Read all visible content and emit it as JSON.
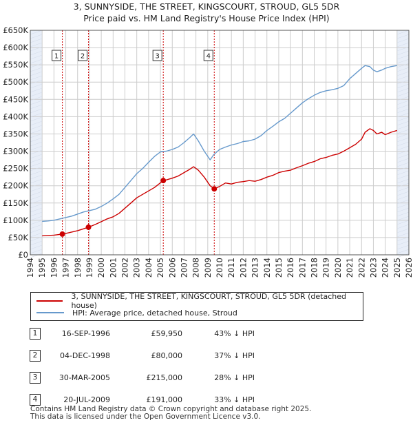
{
  "title_line1": "3, SUNNYSIDE, THE STREET, KINGSCOURT, STROUD, GL5 5DR",
  "title_line2": "Price paid vs. HM Land Registry's House Price Index (HPI)",
  "colors": {
    "price": "#cc0000",
    "hpi": "#6699cc",
    "marker_line": "#cc0000",
    "shade": "#e8eef8",
    "grid": "#cccccc"
  },
  "legend": {
    "price_label": "3, SUNNYSIDE, THE STREET, KINGSCOURT, STROUD, GL5 5DR (detached house)",
    "hpi_label": "HPI: Average price, detached house, Stroud"
  },
  "transactions": [
    {
      "num": "1",
      "date": "16-SEP-1996",
      "price": "£59,950",
      "hpi_diff": "43% ↓ HPI"
    },
    {
      "num": "2",
      "date": "04-DEC-1998",
      "price": "£80,000",
      "hpi_diff": "37% ↓ HPI"
    },
    {
      "num": "3",
      "date": "30-MAR-2005",
      "price": "£215,000",
      "hpi_diff": "28% ↓ HPI"
    },
    {
      "num": "4",
      "date": "20-JUL-2009",
      "price": "£191,000",
      "hpi_diff": "33% ↓ HPI"
    }
  ],
  "footer_line1": "Contains HM Land Registry data © Crown copyright and database right 2025.",
  "footer_line2": "This data is licensed under the Open Government Licence v3.0.",
  "chart_data": {
    "type": "line",
    "xlim": [
      1994,
      2026
    ],
    "ylim": [
      0,
      650000
    ],
    "x_ticks": [
      1994,
      1995,
      1996,
      1997,
      1998,
      1999,
      2000,
      2001,
      2002,
      2003,
      2004,
      2005,
      2006,
      2007,
      2008,
      2009,
      2010,
      2011,
      2012,
      2013,
      2014,
      2015,
      2016,
      2017,
      2018,
      2019,
      2020,
      2021,
      2022,
      2023,
      2024,
      2025,
      2026
    ],
    "y_ticks": [
      0,
      50000,
      100000,
      150000,
      200000,
      250000,
      300000,
      350000,
      400000,
      450000,
      500000,
      550000,
      600000,
      650000
    ],
    "y_tick_labels": [
      "£0",
      "£50K",
      "£100K",
      "£150K",
      "£200K",
      "£250K",
      "£300K",
      "£350K",
      "£400K",
      "£450K",
      "£500K",
      "£550K",
      "£600K",
      "£650K"
    ],
    "shaded_ranges": [
      [
        1994,
        1995
      ],
      [
        2025,
        2026
      ]
    ],
    "series": [
      {
        "name": "3, SUNNYSIDE, THE STREET, KINGSCOURT, STROUD, GL5 5DR (detached house)",
        "x": [
          1995,
          1995.5,
          1996,
          1996.71,
          1997,
          1997.5,
          1998,
          1998.92,
          1999.5,
          2000,
          2000.5,
          2001,
          2001.5,
          2002,
          2002.5,
          2003,
          2003.5,
          2004,
          2004.5,
          2005.24,
          2005.5,
          2006,
          2006.5,
          2007,
          2007.5,
          2007.8,
          2008.2,
          2008.7,
          2009.2,
          2009.55,
          2010,
          2010.5,
          2011,
          2011.5,
          2012,
          2012.5,
          2013,
          2013.5,
          2014,
          2014.5,
          2015,
          2015.5,
          2016,
          2016.5,
          2017,
          2017.5,
          2018,
          2018.5,
          2019,
          2019.5,
          2020,
          2020.5,
          2021,
          2021.5,
          2022,
          2022.3,
          2022.7,
          2023,
          2023.3,
          2023.7,
          2024,
          2024.5,
          2025
        ],
        "values": [
          55000,
          56000,
          57000,
          59950,
          62000,
          66000,
          70000,
          80000,
          88000,
          96000,
          104000,
          110000,
          120000,
          135000,
          150000,
          165000,
          175000,
          185000,
          195000,
          215000,
          217000,
          222000,
          228000,
          238000,
          248000,
          255000,
          245000,
          225000,
          200000,
          191000,
          198000,
          208000,
          205000,
          210000,
          212000,
          215000,
          213000,
          218000,
          225000,
          230000,
          238000,
          242000,
          245000,
          252000,
          258000,
          265000,
          270000,
          278000,
          282000,
          288000,
          292000,
          300000,
          310000,
          320000,
          335000,
          355000,
          365000,
          360000,
          350000,
          355000,
          348000,
          355000,
          360000
        ]
      },
      {
        "name": "HPI: Average price, detached house, Stroud",
        "x": [
          1995,
          1995.5,
          1996,
          1996.5,
          1997,
          1997.5,
          1998,
          1998.5,
          1999,
          1999.5,
          2000,
          2000.5,
          2001,
          2001.5,
          2002,
          2002.5,
          2003,
          2003.5,
          2004,
          2004.5,
          2005,
          2005.5,
          2006,
          2006.5,
          2007,
          2007.5,
          2007.8,
          2008.2,
          2008.7,
          2009.2,
          2009.5,
          2010,
          2010.5,
          2011,
          2011.5,
          2012,
          2012.5,
          2013,
          2013.5,
          2014,
          2014.5,
          2015,
          2015.5,
          2016,
          2016.5,
          2017,
          2017.5,
          2018,
          2018.5,
          2019,
          2019.5,
          2020,
          2020.5,
          2021,
          2021.5,
          2022,
          2022.3,
          2022.7,
          2023,
          2023.3,
          2023.7,
          2024,
          2024.5,
          2025
        ],
        "values": [
          97000,
          98000,
          100000,
          104000,
          108000,
          112000,
          118000,
          124000,
          128000,
          132000,
          140000,
          150000,
          162000,
          175000,
          195000,
          215000,
          235000,
          250000,
          268000,
          285000,
          298000,
          300000,
          305000,
          312000,
          325000,
          340000,
          350000,
          330000,
          300000,
          275000,
          290000,
          305000,
          312000,
          318000,
          322000,
          328000,
          330000,
          335000,
          345000,
          360000,
          372000,
          385000,
          395000,
          410000,
          425000,
          440000,
          452000,
          462000,
          470000,
          475000,
          478000,
          482000,
          490000,
          510000,
          525000,
          540000,
          548000,
          545000,
          535000,
          530000,
          535000,
          540000,
          545000,
          548000
        ]
      }
    ],
    "sales": [
      {
        "label": "1",
        "x": 1996.71,
        "value": 59950
      },
      {
        "label": "2",
        "x": 1998.92,
        "value": 80000
      },
      {
        "label": "3",
        "x": 2005.24,
        "value": 215000
      },
      {
        "label": "4",
        "x": 2009.55,
        "value": 191000
      }
    ]
  }
}
